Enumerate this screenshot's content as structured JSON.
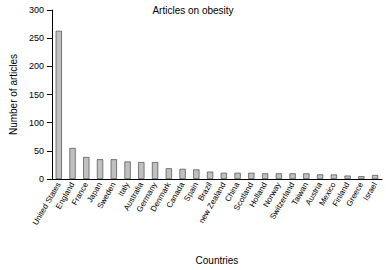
{
  "chart_data": {
    "type": "bar",
    "title": "Articles on obesity",
    "x_label": "Countries",
    "y_label": "Number of articles",
    "categories": [
      "United States",
      "England",
      "France",
      "Japan",
      "Sweden",
      "Italy",
      "Australia",
      "Germany",
      "Denmark",
      "Canada",
      "Spain",
      "Brazil",
      "new Zealand",
      "China",
      "Scotland",
      "Holland",
      "Norway",
      "Switzerland",
      "Taiwan",
      "Austria",
      "Mexico",
      "Finland",
      "Greece",
      "Israel"
    ],
    "values": [
      263,
      55,
      39,
      35,
      35,
      31,
      30,
      30,
      19,
      18,
      17,
      13,
      11,
      11,
      11,
      10,
      10,
      10,
      10,
      8,
      8,
      6,
      5,
      7
    ],
    "color": "#c0c0c0",
    "ylim": [
      0,
      300
    ],
    "yticks": [
      0,
      50,
      100,
      150,
      200,
      250,
      300
    ],
    "grid": false
  }
}
